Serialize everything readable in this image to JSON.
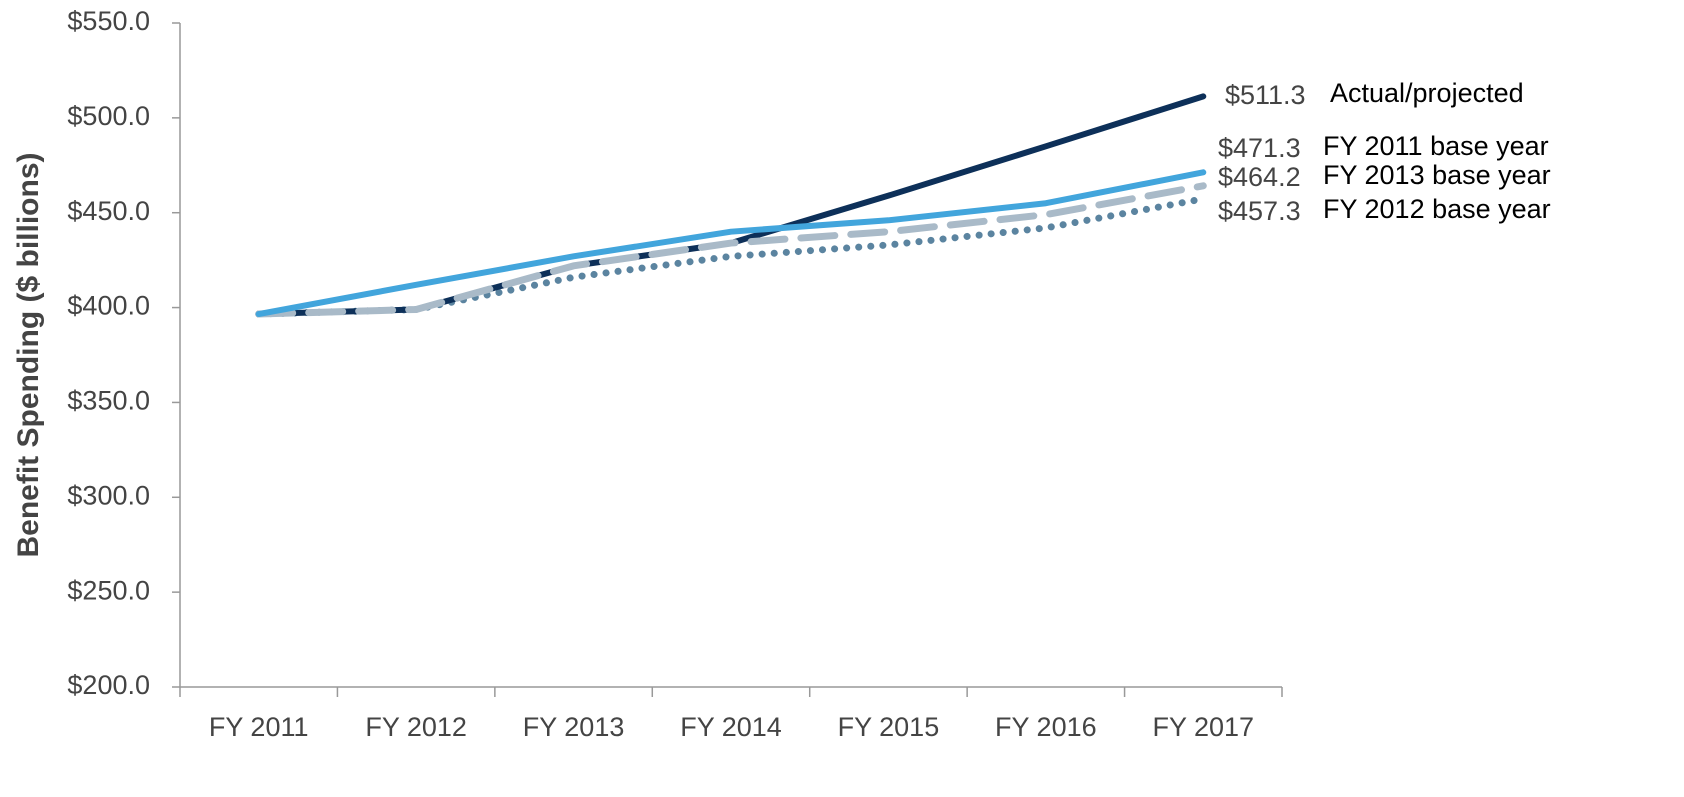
{
  "chart_data": {
    "type": "line",
    "y_label": "Benefit Spending ($ billions)",
    "categories": [
      "FY 2011",
      "FY 2012",
      "FY 2013",
      "FY 2014",
      "FY 2015",
      "FY 2016",
      "FY 2017"
    ],
    "ylim": [
      200,
      550
    ],
    "yticks": [
      {
        "value": 200,
        "label": "$200.0"
      },
      {
        "value": 250,
        "label": "$250.0"
      },
      {
        "value": 300,
        "label": "$300.0"
      },
      {
        "value": 350,
        "label": "$350.0"
      },
      {
        "value": 400,
        "label": "$400.0"
      },
      {
        "value": 450,
        "label": "$450.0"
      },
      {
        "value": 500,
        "label": "$500.0"
      },
      {
        "value": 550,
        "label": "$550.0"
      }
    ],
    "series": [
      {
        "name": "FY 2012 base year",
        "color": "#5b84a0",
        "style": "dotted",
        "values": [
          396.6,
          399,
          416,
          427,
          433,
          442,
          457.3
        ],
        "value_labels": [
          null,
          null,
          null,
          null,
          null,
          null,
          "$457.3"
        ]
      },
      {
        "name": "Actual/projected",
        "color": "#0d3059",
        "style": "solid",
        "values": [
          396.6,
          399,
          422,
          434,
          459,
          485,
          511.3
        ],
        "value_labels": [
          null,
          null,
          null,
          null,
          null,
          null,
          "$511.3"
        ]
      },
      {
        "name": "FY 2013 base year",
        "color": "#a9bac8",
        "style": "dashed",
        "values": [
          396.6,
          399,
          422,
          434,
          440,
          449,
          464.2
        ],
        "value_labels": [
          null,
          null,
          null,
          null,
          null,
          null,
          "$464.2"
        ]
      },
      {
        "name": "FY 2011 base year",
        "color": "#42a5dc",
        "style": "solid",
        "values": [
          396.6,
          412,
          427,
          440,
          446,
          455,
          471.3
        ],
        "value_labels": [
          null,
          null,
          null,
          null,
          null,
          null,
          "$471.3"
        ]
      }
    ]
  }
}
